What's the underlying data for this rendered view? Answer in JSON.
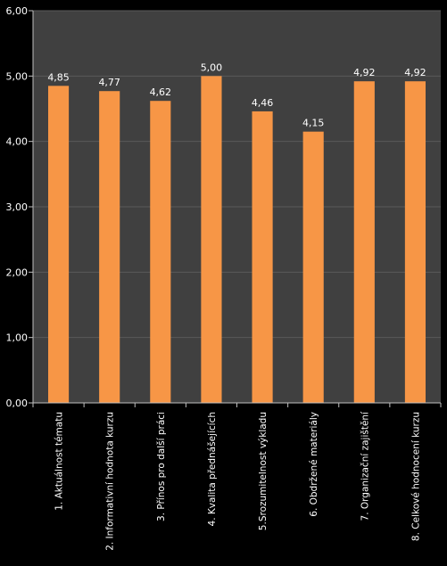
{
  "chart_data": {
    "type": "bar",
    "title": "",
    "xlabel": "",
    "ylabel": "",
    "categories": [
      "1. Aktuálnost tématu",
      "2. Informativní hodnota kurzu",
      "3. Přínos pro další práci",
      "4. Kvalita přednášejících",
      "5.Srozumitelnost výkladu",
      "6. Obdržené materiály",
      "7. Organizační zajištění",
      "8. Celkové hodnocení kurzu"
    ],
    "values": [
      4.85,
      4.77,
      4.62,
      5.0,
      4.46,
      4.15,
      4.92,
      4.92
    ],
    "value_labels": [
      "4,85",
      "4,77",
      "4,62",
      "5,00",
      "4,46",
      "4,15",
      "4,92",
      "4,92"
    ],
    "ylim": [
      0,
      6
    ],
    "yticks": [
      0,
      1,
      2,
      3,
      4,
      5,
      6
    ],
    "ytick_labels": [
      "0,00",
      "1,00",
      "2,00",
      "3,00",
      "4,00",
      "5,00",
      "6,00"
    ],
    "grid": true,
    "legend": "none",
    "colors": {
      "bar": "#f79646",
      "plot_background": "#404040",
      "page_background": "#000000",
      "gridline": "#5a5a5a",
      "axis": "#bfbfbf",
      "text": "#ffffff"
    }
  }
}
